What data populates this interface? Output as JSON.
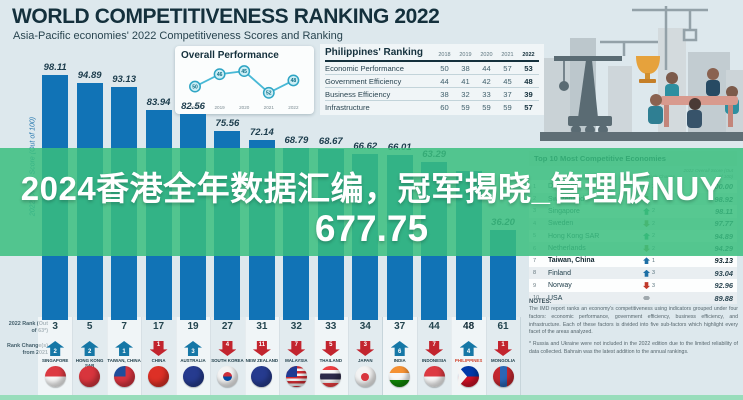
{
  "header": {
    "title": "WORLD COMPETITIVENESS RANKING 2022",
    "subtitle": "Asia-Pacific economies' 2022 Competitiveness Scores and Ranking"
  },
  "watermark": {
    "line1": "2024香港全年数据汇编，冠军揭晓_管理版NUY",
    "line2": "677.75"
  },
  "axis": {
    "y_label": "2022 Overall Score (Out of 100)",
    "rank_label": "2022 Rank (Out of 63*)",
    "change_label": "Rank Change(s) from 2021"
  },
  "overall_performance": {
    "title": "Overall Performance",
    "years": [
      "2018",
      "2019",
      "2020",
      "2021",
      "2022"
    ],
    "values": [
      50,
      46,
      45,
      52,
      48
    ]
  },
  "philippines_ranking": {
    "title": "Philippines' Ranking",
    "years": [
      "2018",
      "2019",
      "2020",
      "2021",
      "2022"
    ],
    "rows": [
      {
        "label": "Economic Performance",
        "values": [
          "50",
          "38",
          "44",
          "57",
          "53"
        ]
      },
      {
        "label": "Government Efficiency",
        "values": [
          "44",
          "41",
          "42",
          "45",
          "48"
        ]
      },
      {
        "label": "Business Efficiency",
        "values": [
          "38",
          "32",
          "33",
          "37",
          "39"
        ]
      },
      {
        "label": "Infrastructure",
        "values": [
          "60",
          "59",
          "59",
          "59",
          "57"
        ]
      }
    ]
  },
  "economies": [
    {
      "name": "Singapore",
      "flag": "singapore",
      "score_label": "98.11",
      "score_value": 98.11,
      "rank": "3",
      "change": {
        "dir": "up",
        "n": "2"
      }
    },
    {
      "name": "Hong Kong SAR",
      "flag": "hongkong",
      "score_label": "94.89",
      "score_value": 94.89,
      "rank": "5",
      "change": {
        "dir": "up",
        "n": "2"
      }
    },
    {
      "name": "Taiwan, China",
      "flag": "taiwan",
      "score_label": "93.13",
      "score_value": 93.13,
      "rank": "7",
      "change": {
        "dir": "up",
        "n": "1"
      }
    },
    {
      "name": "China",
      "flag": "china",
      "score_label": "83.94",
      "score_value": 83.94,
      "rank": "17",
      "change": {
        "dir": "down",
        "n": "1"
      }
    },
    {
      "name": "Australia",
      "flag": "australia",
      "score_label": "82.56",
      "score_value": 82.56,
      "rank": "19",
      "change": {
        "dir": "up",
        "n": "3"
      }
    },
    {
      "name": "South Korea",
      "flag": "southkorea",
      "score_label": "75.56",
      "score_value": 75.56,
      "rank": "27",
      "change": {
        "dir": "down",
        "n": "4"
      }
    },
    {
      "name": "New Zealand",
      "flag": "newzealand",
      "score_label": "72.14",
      "score_value": 72.14,
      "rank": "31",
      "change": {
        "dir": "down",
        "n": "11"
      }
    },
    {
      "name": "Malaysia",
      "flag": "malaysia",
      "score_label": "68.79",
      "score_value": 68.79,
      "rank": "32",
      "change": {
        "dir": "down",
        "n": "7"
      }
    },
    {
      "name": "Thailand",
      "flag": "thailand",
      "score_label": "68.67",
      "score_value": 68.67,
      "rank": "33",
      "change": {
        "dir": "down",
        "n": "5"
      }
    },
    {
      "name": "Japan",
      "flag": "japan",
      "score_label": "66.62",
      "score_value": 66.62,
      "rank": "34",
      "change": {
        "dir": "down",
        "n": "3"
      }
    },
    {
      "name": "India",
      "flag": "india",
      "score_label": "66.01",
      "score_value": 66.01,
      "rank": "37",
      "change": {
        "dir": "up",
        "n": "6"
      }
    },
    {
      "name": "Indonesia",
      "flag": "indonesia",
      "score_label": "63.29",
      "score_value": 63.29,
      "rank": "44",
      "change": {
        "dir": "down",
        "n": "7"
      }
    },
    {
      "name": "Philippines",
      "flag": "philippines",
      "score_label": "",
      "score_value": 59.5,
      "rank": "48",
      "change": {
        "dir": "up",
        "n": "4"
      },
      "highlight": true
    },
    {
      "name": "Mongolia",
      "flag": "mongolia",
      "score_label": "36.20",
      "score_value": 36.2,
      "rank": "61",
      "change": {
        "dir": "down",
        "n": "1"
      }
    }
  ],
  "top10": {
    "title": "Top 10 Most Competitive Economies",
    "col_change": "Rank Change",
    "col_score": "2022 Overall Score (Out of 100)",
    "rows": [
      {
        "rank": "1",
        "name": "Denmark",
        "dir": "up",
        "n": "2",
        "color": "#2f9e6a",
        "score": "100.00"
      },
      {
        "rank": "2",
        "name": "Switzerland",
        "dir": "down",
        "n": "1",
        "color": "#8e8f3c",
        "score": "98.92"
      },
      {
        "rank": "3",
        "name": "Singapore",
        "dir": "up",
        "n": "2",
        "color": "#2f9e6a",
        "score": "98.11"
      },
      {
        "rank": "4",
        "name": "Sweden",
        "dir": "down",
        "n": "2",
        "color": "#8e8f3c",
        "score": "97.77"
      },
      {
        "rank": "5",
        "name": "Hong Kong SAR",
        "dir": "up",
        "n": "2",
        "color": "#2f9e6a",
        "score": "94.89"
      },
      {
        "rank": "6",
        "name": "Netherlands",
        "dir": "down",
        "n": "2",
        "color": "#8e8f3c",
        "score": "94.29"
      },
      {
        "rank": "7",
        "name": "Taiwan, China",
        "dir": "up",
        "n": "1",
        "color": "#1d6fa5",
        "score": "93.13",
        "bold": true
      },
      {
        "rank": "8",
        "name": "Finland",
        "dir": "up",
        "n": "3",
        "color": "#1d6fa5",
        "score": "93.04"
      },
      {
        "rank": "9",
        "name": "Norway",
        "dir": "down",
        "n": "3",
        "color": "#c0392b",
        "score": "92.96"
      },
      {
        "rank": "10",
        "name": "USA",
        "dir": "none",
        "n": "",
        "color": "#9fa8ad",
        "score": "89.88"
      }
    ]
  },
  "notes": {
    "title": "NOTES:",
    "p1": "The IMD report ranks an economy's competitiveness using indicators grouped under four factors: economic performance, government efficiency, business efficiency, and infrastructure. Each of these factors is divided into five sub-factors which highlight every facet of the areas analyzed.",
    "p2": "* Russia and Ukraine were not included in the 2022 edition due to the limited reliability of data collected. Bahrain was the latest addition to the annual rankings."
  },
  "colors": {
    "bar": "#1173b6",
    "overlay_green": "rgba(57,190,126,0.85)",
    "arrow_up": "#1577a6",
    "arrow_down": "#c2242e",
    "title_navy": "#14303c"
  },
  "chart_data": [
    {
      "type": "bar",
      "title": "WORLD COMPETITIVENESS RANKING 2022",
      "subtitle": "Asia-Pacific economies' 2022 Competitiveness Scores and Ranking",
      "ylabel": "2022 Overall Score (Out of 100)",
      "ylim": [
        0,
        100
      ],
      "categories": [
        "Singapore",
        "Hong Kong SAR",
        "Taiwan, China",
        "China",
        "Australia",
        "South Korea",
        "New Zealand",
        "Malaysia",
        "Thailand",
        "Japan",
        "India",
        "Indonesia",
        "Philippines",
        "Mongolia"
      ],
      "values": [
        98.11,
        94.89,
        93.13,
        83.94,
        82.56,
        75.56,
        72.14,
        68.79,
        68.67,
        66.62,
        66.01,
        63.29,
        59.5,
        36.2
      ],
      "value_labels": [
        "98.11",
        "94.89",
        "93.13",
        "83.94",
        "82.56",
        "75.56",
        "72.14",
        "68.79",
        "68.67",
        "66.62",
        "66.01",
        "63.29",
        "",
        "36.20"
      ],
      "ranks_2022": [
        3,
        5,
        7,
        17,
        19,
        27,
        31,
        32,
        33,
        34,
        37,
        44,
        48,
        61
      ],
      "rank_changes_from_2021": [
        "+2",
        "+2",
        "+1",
        "-1",
        "+3",
        "-4",
        "-11",
        "-7",
        "-5",
        "-3",
        "+6",
        "-7",
        "+4",
        "-1"
      ]
    },
    {
      "type": "line",
      "title": "Overall Performance",
      "x": [
        "2018",
        "2019",
        "2020",
        "2021",
        "2022"
      ],
      "values": [
        50,
        46,
        45,
        52,
        48
      ]
    }
  ]
}
